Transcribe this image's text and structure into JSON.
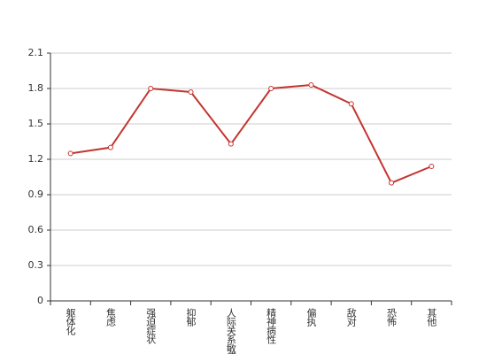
{
  "chart_data": {
    "type": "line",
    "categories": [
      "躯体化",
      "焦虑",
      "强迫症状",
      "抑郁",
      "人际关系敏感",
      "精神病性",
      "偏执",
      "敌对",
      "恐怖",
      "其他"
    ],
    "values": [
      1.25,
      1.3,
      1.8,
      1.77,
      1.33,
      1.8,
      1.83,
      1.67,
      1.0,
      1.14
    ],
    "color": "#c23531",
    "ylim": [
      0,
      2.1
    ],
    "yticks": [
      0,
      0.3,
      0.6,
      0.9,
      1.2,
      1.5,
      1.8,
      2.1
    ],
    "grid": true
  }
}
